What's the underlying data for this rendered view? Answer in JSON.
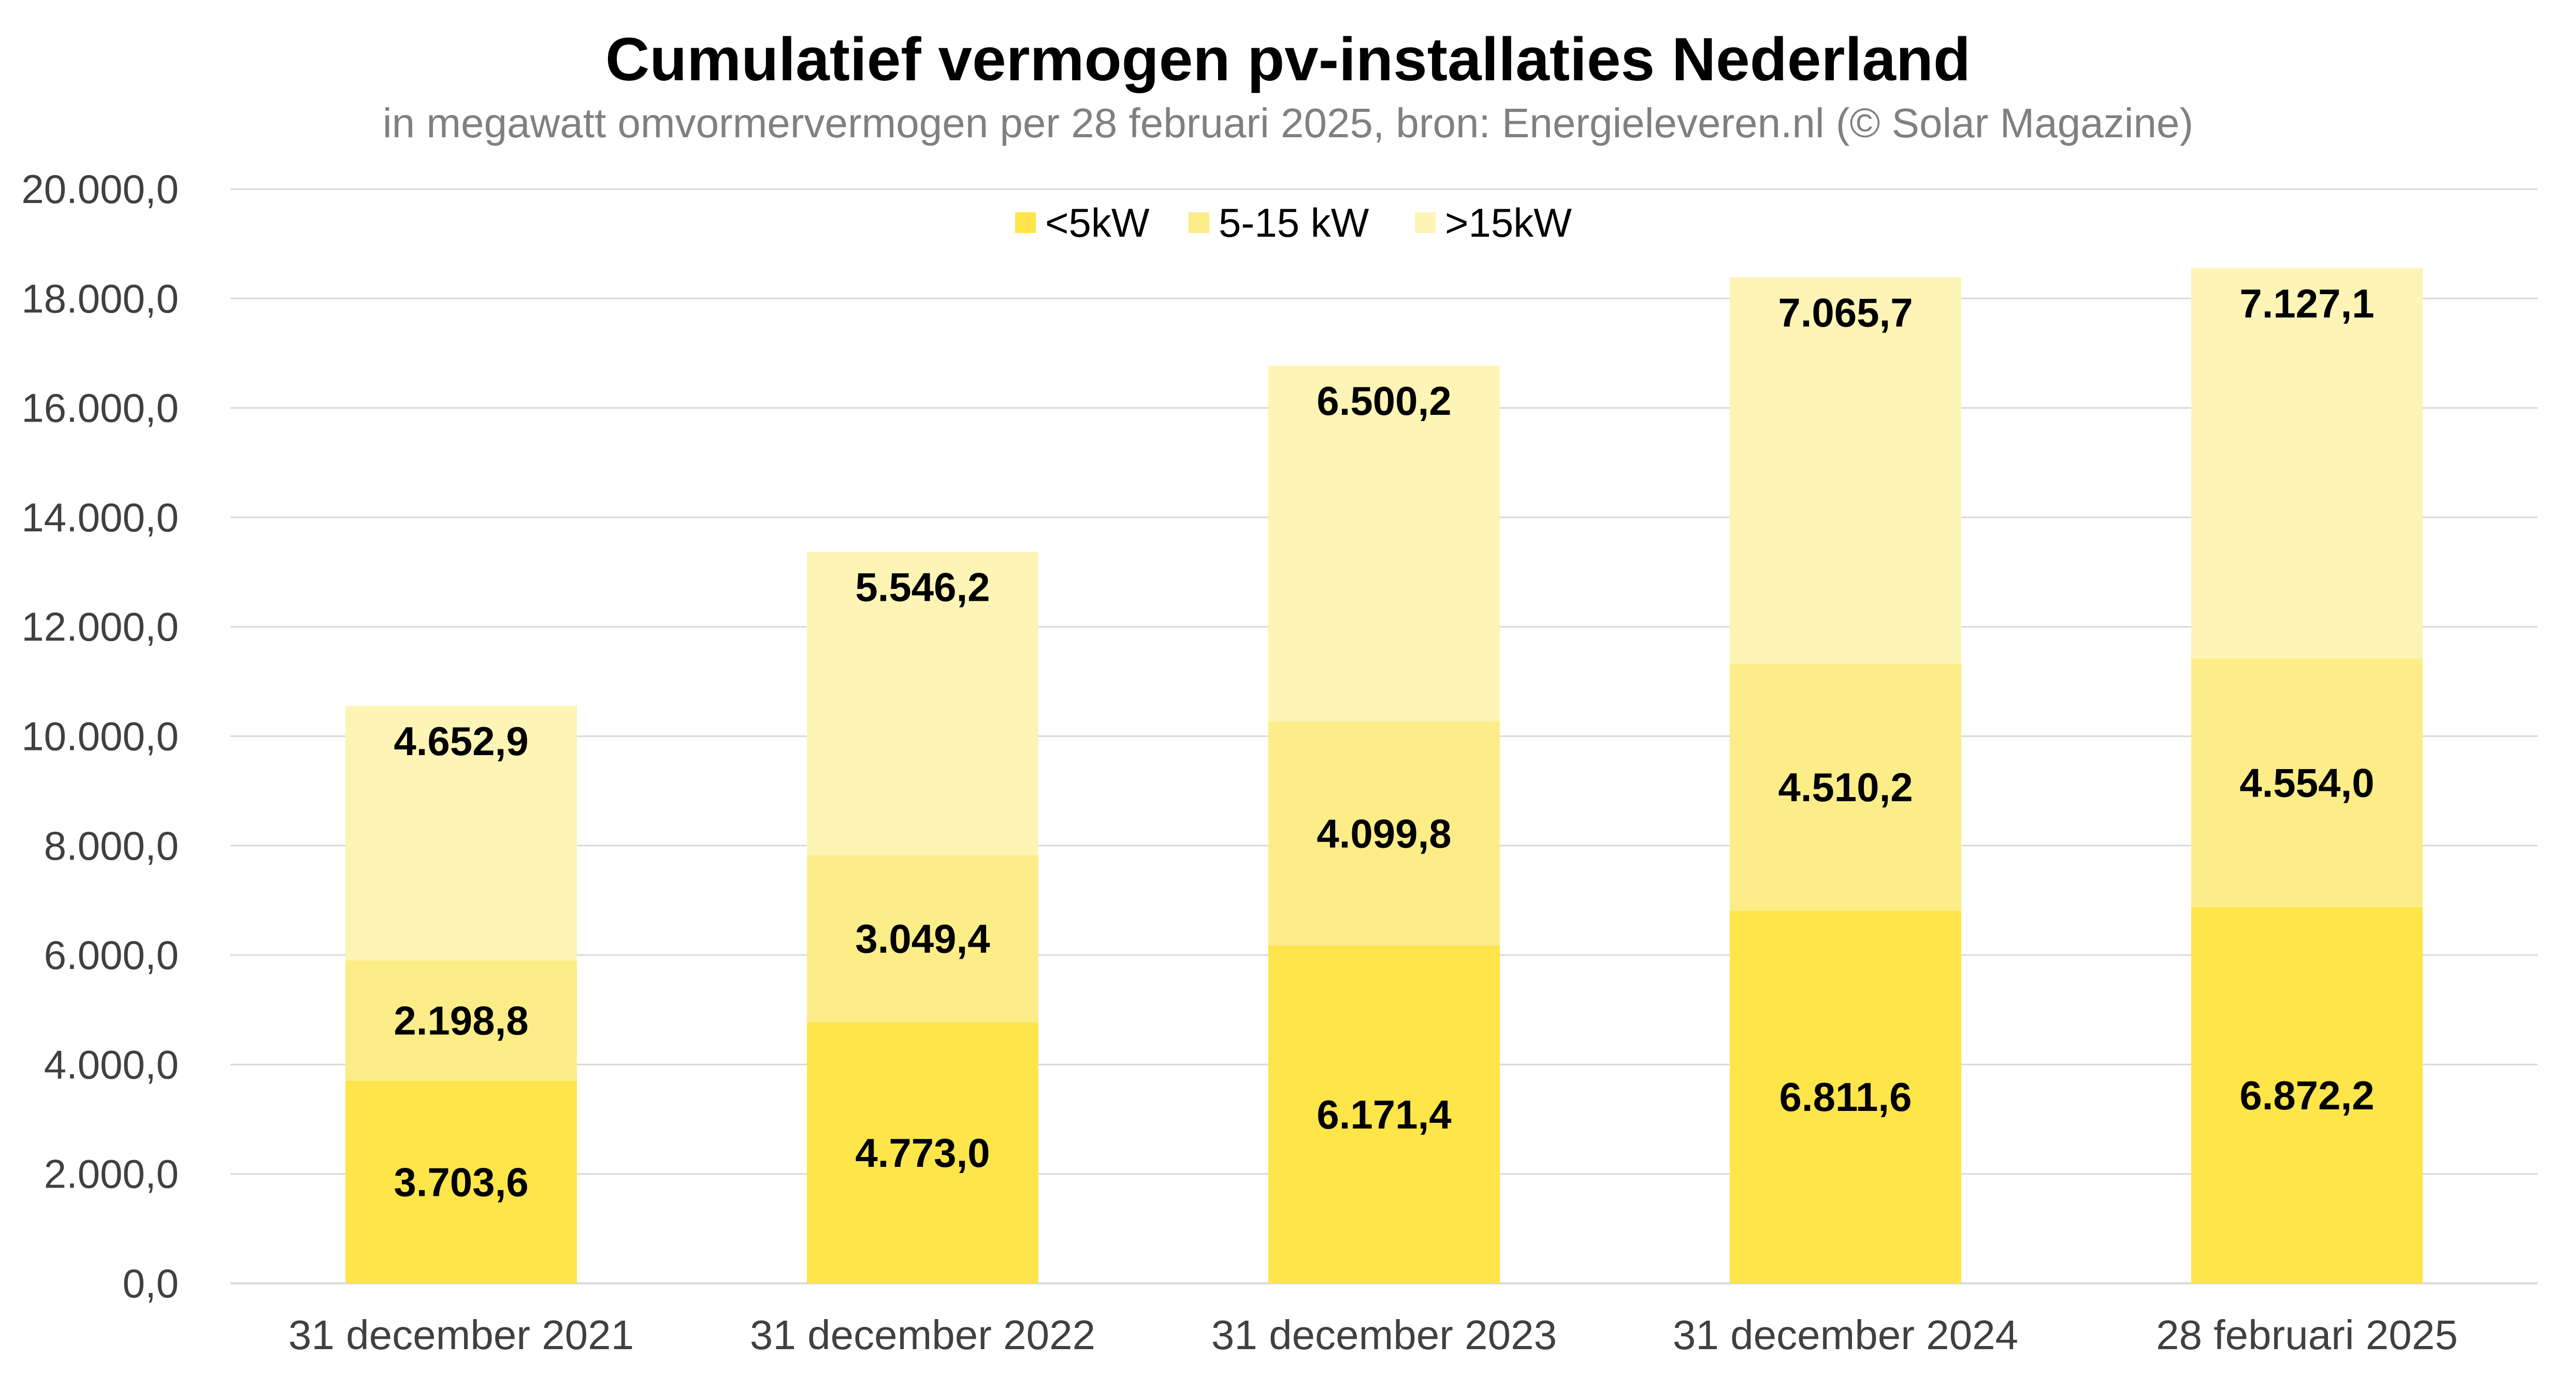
{
  "chart_data": {
    "type": "bar",
    "stacked": true,
    "title": "Cumulatief vermogen pv-installaties Nederland",
    "subtitle": "in megawatt omvormervermogen per 28 februari 2025, bron: Energieleveren.nl (© Solar Magazine)",
    "xlabel": "",
    "ylabel": "",
    "categories": [
      "31 december 2021",
      "31 december 2022",
      "31 december 2023",
      "31 december 2024",
      "28 februari 2025"
    ],
    "series": [
      {
        "name": "<5kW",
        "color": "#FDE54A",
        "values": [
          3703.6,
          4773.0,
          6171.4,
          6811.6,
          6872.2
        ],
        "labels": [
          "3.703,6",
          "4.773,0",
          "6.171,4",
          "6.811,6",
          "6.872,2"
        ]
      },
      {
        "name": "5-15 kW",
        "color": "#FCED88",
        "values": [
          2198.8,
          3049.4,
          4099.8,
          4510.2,
          4554.0
        ],
        "labels": [
          "2.198,8",
          "3.049,4",
          "4.099,8",
          "4.510,2",
          "4.554,0"
        ]
      },
      {
        "name": ">15kW",
        "color": "#FEF4B5",
        "values": [
          4652.9,
          5546.2,
          6500.2,
          7065.7,
          7127.1
        ],
        "labels": [
          "4.652,9",
          "5.546,2",
          "6.500,2",
          "7.065,7",
          "7.127,1"
        ]
      }
    ],
    "ylim": [
      0,
      20000
    ],
    "yticks": [
      0,
      2000,
      4000,
      6000,
      8000,
      10000,
      12000,
      14000,
      16000,
      18000,
      20000
    ],
    "ytick_labels": [
      "0,0",
      "2.000,0",
      "4.000,0",
      "6.000,0",
      "8.000,0",
      "10.000,0",
      "12.000,0",
      "14.000,0",
      "16.000,0",
      "18.000,0",
      "20.000,0"
    ],
    "grid": true,
    "legend_position": "top-center",
    "colors": {
      "gridline": "#D9D9D9",
      "axis_text": "#404040",
      "subtitle": "#808080"
    }
  }
}
